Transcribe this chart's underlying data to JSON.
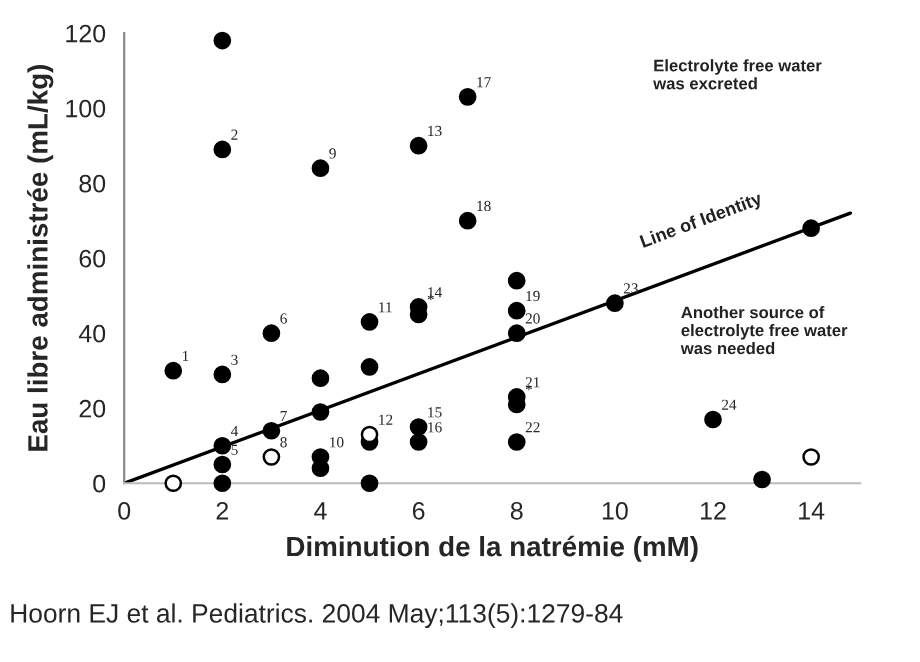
{
  "chart_data": {
    "type": "scatter",
    "xlabel": "Diminution de la natrémie (mM)",
    "ylabel": "Eau libre administrée (mL/kg)",
    "xlim": [
      0,
      15
    ],
    "ylim": [
      0,
      120
    ],
    "xticks": [
      0,
      2,
      4,
      6,
      8,
      10,
      12,
      14
    ],
    "yticks": [
      0,
      20,
      40,
      60,
      80,
      100,
      120
    ],
    "grid": false,
    "series": [
      {
        "marker": "circle",
        "color": "#000000",
        "x": [
          1,
          2,
          2,
          2,
          2,
          2,
          2,
          3,
          3,
          4,
          4,
          4,
          4,
          4,
          5,
          5,
          5,
          5,
          6,
          6,
          6,
          6,
          6,
          7,
          7,
          8,
          8,
          8,
          8,
          8,
          8,
          10,
          12,
          13,
          14
        ],
        "values": [
          30,
          118,
          89,
          29,
          10,
          5,
          0,
          40,
          14,
          84,
          28,
          19,
          7,
          4,
          43,
          31,
          11,
          0,
          90,
          47,
          45,
          15,
          11,
          103,
          70,
          54,
          46,
          40,
          23,
          21,
          11,
          48,
          17,
          1,
          68
        ]
      },
      {
        "marker": "circle",
        "color": "#ffffff",
        "x": [
          1,
          3,
          5,
          14
        ],
        "values": [
          0,
          7,
          13,
          7
        ]
      },
      {
        "type": "line",
        "color": "#000000",
        "x": [
          0,
          14.8
        ],
        "values": [
          0,
          72
        ],
        "line_style": "solid",
        "marker": "none"
      }
    ],
    "annotations": [
      {
        "text": "1",
        "x": 1,
        "y": 30
      },
      {
        "text": "2",
        "x": 2,
        "y": 89
      },
      {
        "text": "3",
        "x": 2,
        "y": 29
      },
      {
        "text": "4",
        "x": 2,
        "y": 10
      },
      {
        "text": "5",
        "x": 2,
        "y": 5
      },
      {
        "text": "6",
        "x": 3,
        "y": 40
      },
      {
        "text": "7",
        "x": 3,
        "y": 14
      },
      {
        "text": "8",
        "x": 3,
        "y": 7
      },
      {
        "text": "9",
        "x": 4,
        "y": 84
      },
      {
        "text": "10",
        "x": 4,
        "y": 7
      },
      {
        "text": "11",
        "x": 5,
        "y": 43
      },
      {
        "text": "12",
        "x": 5,
        "y": 13
      },
      {
        "text": "13",
        "x": 6,
        "y": 90
      },
      {
        "text": "14",
        "x": 6,
        "y": 47
      },
      {
        "text": "*",
        "x": 6,
        "y": 45
      },
      {
        "text": "15",
        "x": 6,
        "y": 15
      },
      {
        "text": "16",
        "x": 6,
        "y": 11
      },
      {
        "text": "17",
        "x": 7,
        "y": 103
      },
      {
        "text": "18",
        "x": 7,
        "y": 70
      },
      {
        "text": "19",
        "x": 8,
        "y": 46
      },
      {
        "text": "20",
        "x": 8,
        "y": 40
      },
      {
        "text": "21",
        "x": 8,
        "y": 23
      },
      {
        "text": "*",
        "x": 8,
        "y": 21
      },
      {
        "text": "22",
        "x": 8,
        "y": 11
      },
      {
        "text": "23",
        "x": 10,
        "y": 48
      },
      {
        "text": "24",
        "x": 12,
        "y": 17
      },
      "Electrolyte free water was excreted",
      "Line of Identity",
      "Another source of electrolyte free water was needed",
      "Hoorn EJ et al. Pediatrics. 2004 May;113(5):1279-84"
    ]
  }
}
